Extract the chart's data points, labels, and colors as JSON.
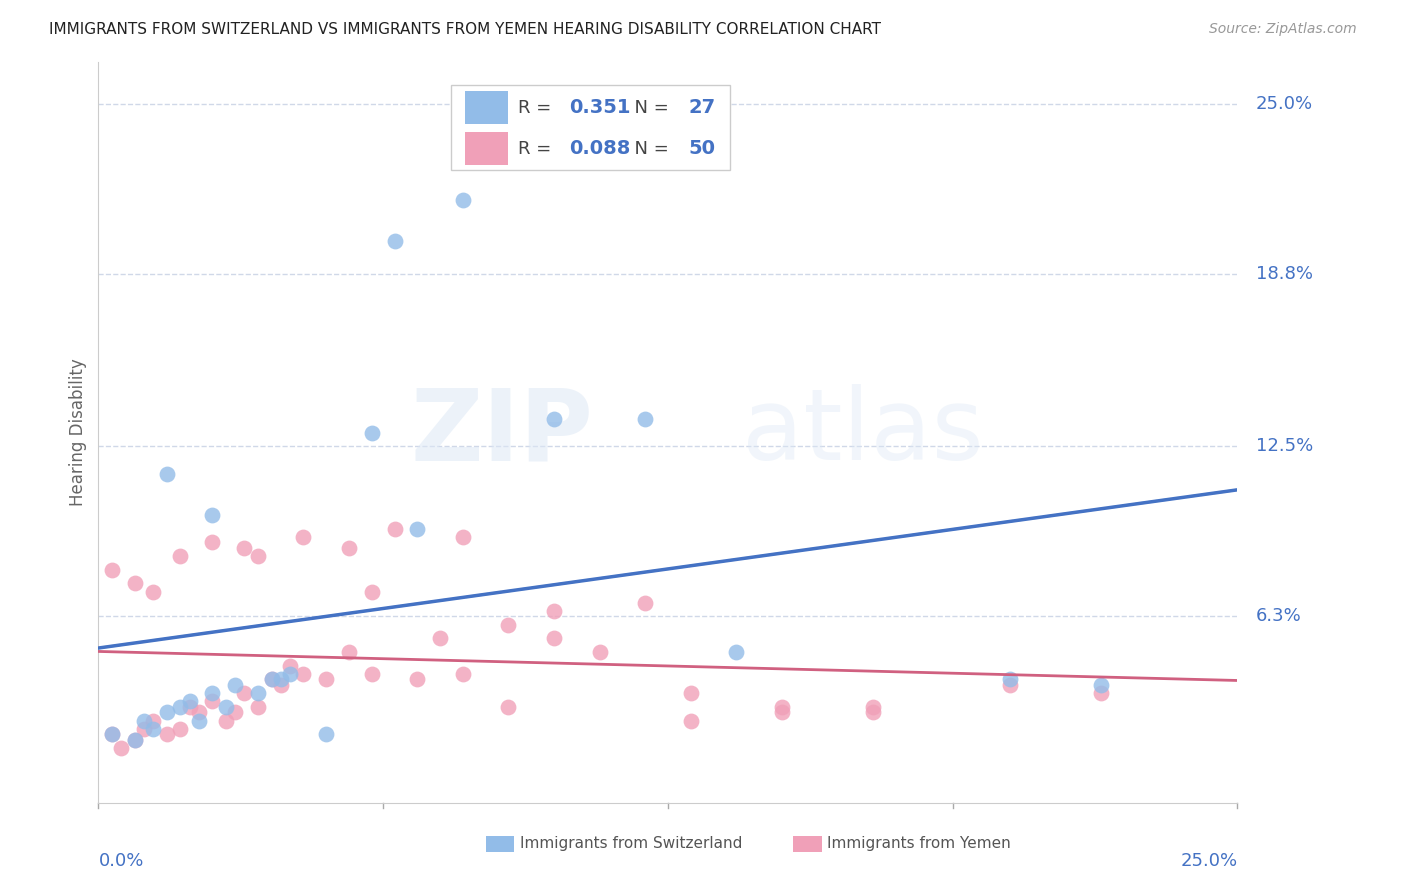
{
  "title": "IMMIGRANTS FROM SWITZERLAND VS IMMIGRANTS FROM YEMEN HEARING DISABILITY CORRELATION CHART",
  "source": "Source: ZipAtlas.com",
  "ylabel": "Hearing Disability",
  "ytick_labels": [
    "25.0%",
    "18.8%",
    "12.5%",
    "6.3%"
  ],
  "ytick_values": [
    0.25,
    0.188,
    0.125,
    0.063
  ],
  "xlim": [
    0.0,
    0.25
  ],
  "ylim": [
    -0.005,
    0.265
  ],
  "legend_swiss_r": "0.351",
  "legend_swiss_n": "27",
  "legend_yemen_r": "0.088",
  "legend_yemen_n": "50",
  "color_swiss": "#92bce8",
  "color_yemen": "#f0a0b8",
  "color_swiss_line": "#4472c4",
  "color_yemen_line": "#d06080",
  "color_swiss_dashed": "#a8c0e0",
  "color_ticks": "#4472c4",
  "swiss_scatter_x": [
    0.003,
    0.008,
    0.01,
    0.012,
    0.015,
    0.018,
    0.02,
    0.022,
    0.025,
    0.028,
    0.03,
    0.035,
    0.038,
    0.04,
    0.042,
    0.015,
    0.025,
    0.06,
    0.065,
    0.08,
    0.1,
    0.12,
    0.14,
    0.07,
    0.2,
    0.22,
    0.05
  ],
  "swiss_scatter_y": [
    0.02,
    0.018,
    0.025,
    0.022,
    0.028,
    0.03,
    0.032,
    0.025,
    0.035,
    0.03,
    0.038,
    0.035,
    0.04,
    0.04,
    0.042,
    0.115,
    0.1,
    0.13,
    0.2,
    0.215,
    0.135,
    0.135,
    0.05,
    0.095,
    0.04,
    0.038,
    0.02
  ],
  "yemen_scatter_x": [
    0.003,
    0.005,
    0.008,
    0.01,
    0.012,
    0.015,
    0.018,
    0.02,
    0.022,
    0.025,
    0.028,
    0.03,
    0.032,
    0.035,
    0.038,
    0.04,
    0.042,
    0.045,
    0.05,
    0.055,
    0.06,
    0.07,
    0.075,
    0.08,
    0.09,
    0.1,
    0.11,
    0.13,
    0.15,
    0.17,
    0.003,
    0.008,
    0.012,
    0.018,
    0.025,
    0.032,
    0.045,
    0.055,
    0.065,
    0.08,
    0.1,
    0.12,
    0.15,
    0.17,
    0.2,
    0.22,
    0.035,
    0.06,
    0.09,
    0.13
  ],
  "yemen_scatter_y": [
    0.02,
    0.015,
    0.018,
    0.022,
    0.025,
    0.02,
    0.022,
    0.03,
    0.028,
    0.032,
    0.025,
    0.028,
    0.035,
    0.03,
    0.04,
    0.038,
    0.045,
    0.042,
    0.04,
    0.05,
    0.042,
    0.04,
    0.055,
    0.042,
    0.06,
    0.055,
    0.05,
    0.035,
    0.028,
    0.03,
    0.08,
    0.075,
    0.072,
    0.085,
    0.09,
    0.088,
    0.092,
    0.088,
    0.095,
    0.092,
    0.065,
    0.068,
    0.03,
    0.028,
    0.038,
    0.035,
    0.085,
    0.072,
    0.03,
    0.025
  ],
  "watermark_zip": "ZIP",
  "watermark_atlas": "atlas",
  "grid_color": "#d0d8e8",
  "background_color": "#ffffff"
}
